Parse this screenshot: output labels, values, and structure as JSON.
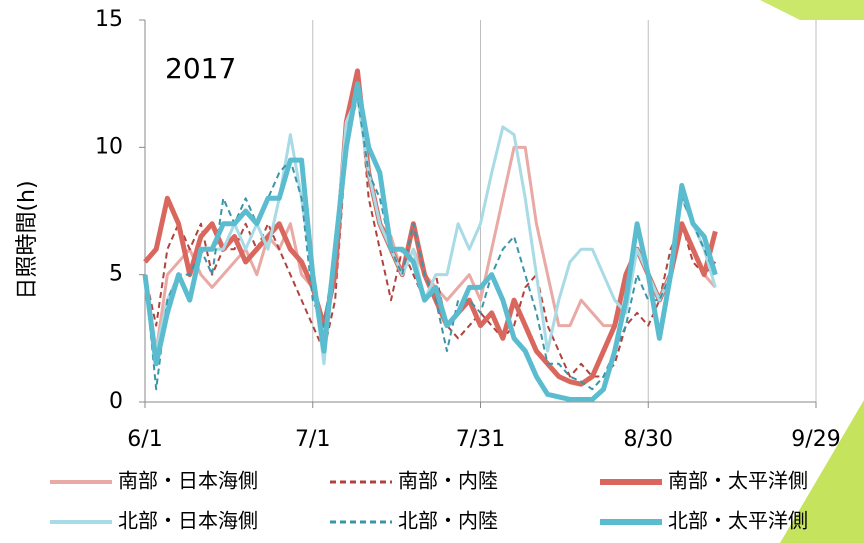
{
  "chart_data": {
    "type": "line",
    "annotation": "2017",
    "y_label": "日照時間(h)",
    "x": [
      0,
      2,
      4,
      6,
      8,
      10,
      12,
      14,
      16,
      18,
      20,
      22,
      24,
      26,
      28,
      30,
      32,
      34,
      36,
      38,
      40,
      42,
      44,
      46,
      48,
      50,
      52,
      54,
      56,
      58,
      60,
      62,
      64,
      66,
      68,
      70,
      72,
      74,
      76,
      78,
      80,
      82,
      84,
      86,
      88,
      90,
      92,
      94,
      96,
      98,
      100,
      102
    ],
    "xlim": [
      0,
      120
    ],
    "xticks": [
      {
        "value": 0,
        "label": "6/1"
      },
      {
        "value": 30,
        "label": "7/1"
      },
      {
        "value": 60,
        "label": "7/31"
      },
      {
        "value": 90,
        "label": "8/30"
      },
      {
        "value": 120,
        "label": "9/29"
      }
    ],
    "ylim": [
      0,
      15
    ],
    "yticks": [
      0,
      5,
      10,
      15
    ],
    "grid": "x",
    "series": [
      {
        "name": "南部・日本海側",
        "color": "#e9a9a4",
        "style": "solid",
        "values": [
          5,
          2,
          5,
          5.5,
          6,
          5,
          4.5,
          5,
          5.5,
          6,
          5,
          6.5,
          6,
          7,
          5,
          4.5,
          2.5,
          6,
          11,
          12.5,
          9,
          7,
          6.5,
          5,
          6,
          5,
          4.5,
          4,
          4.5,
          5,
          4,
          6,
          8,
          10,
          10,
          7,
          5,
          3,
          3,
          4,
          3.5,
          3,
          3,
          4,
          6,
          5,
          4,
          5,
          7,
          6,
          5,
          4.5
        ]
      },
      {
        "name": "南部・内陸",
        "color": "#b0423c",
        "style": "dashed",
        "values": [
          5,
          3,
          6,
          7,
          6,
          7,
          5,
          6,
          6,
          7,
          6,
          7,
          6,
          5,
          4,
          3,
          2,
          4,
          10,
          13,
          8,
          6,
          4,
          6,
          5,
          4,
          5,
          3,
          2.5,
          3,
          3.5,
          3,
          2.5,
          3,
          4.5,
          5,
          3,
          2,
          1,
          1.5,
          1,
          1,
          1.5,
          3,
          3.5,
          3,
          4,
          6,
          7,
          5.5,
          5,
          5.5
        ]
      },
      {
        "name": "南部・太平洋側",
        "color": "#d9675e",
        "style": "thick",
        "values": [
          5.5,
          6,
          8,
          7,
          5,
          6.5,
          7,
          6,
          6.5,
          5.5,
          6,
          6.5,
          7,
          6,
          5.5,
          4.5,
          3,
          5,
          11,
          13,
          9,
          7,
          6,
          5,
          7,
          5,
          4,
          3,
          3.5,
          4,
          3,
          3.5,
          2.5,
          4,
          3,
          2,
          1.5,
          1,
          0.8,
          0.7,
          1,
          2,
          3,
          5,
          6,
          5,
          4,
          5,
          7,
          6,
          5,
          6.7
        ]
      },
      {
        "name": "北部・日本海側",
        "color": "#a8dbe6",
        "style": "solid",
        "values": [
          5,
          2,
          4,
          5,
          4,
          6,
          6,
          6,
          7,
          6,
          7,
          6,
          8,
          10.5,
          8,
          5,
          1.5,
          6,
          11,
          12,
          9,
          7,
          6,
          5,
          6,
          4,
          5,
          5,
          7,
          6,
          7,
          9,
          10.8,
          10.5,
          8,
          5,
          2,
          4,
          5.5,
          6,
          6,
          5,
          4,
          3.5,
          6,
          5,
          4,
          5,
          8,
          7,
          6,
          4.5
        ]
      },
      {
        "name": "北部・内陸",
        "color": "#3a95a8",
        "style": "dashed",
        "values": [
          5,
          0.5,
          4,
          5,
          5,
          6,
          5,
          8,
          7,
          8,
          7,
          8,
          9,
          9.5,
          8,
          4,
          3,
          6,
          10,
          12,
          9,
          8,
          6,
          5,
          7,
          5,
          4,
          2,
          4,
          4,
          3.5,
          5,
          6,
          6.5,
          5,
          3.5,
          1.5,
          1.5,
          1,
          0.8,
          0.5,
          1,
          2,
          3,
          5,
          4,
          4,
          5,
          8,
          7,
          6,
          5
        ]
      },
      {
        "name": "北部・太平洋側",
        "color": "#5bbccf",
        "style": "thick",
        "values": [
          5,
          1.5,
          3.5,
          5,
          4,
          6,
          6,
          7,
          7,
          7.5,
          7,
          8,
          8,
          9.5,
          9.5,
          5,
          2,
          6,
          10,
          12.5,
          10,
          9,
          6,
          6,
          5.5,
          4,
          4.5,
          3,
          3.5,
          4.5,
          4.5,
          5,
          4,
          2.5,
          2,
          1,
          0.3,
          0.2,
          0.1,
          0.1,
          0.1,
          0.5,
          2,
          4,
          7,
          5,
          2.5,
          5,
          8.5,
          7,
          6.5,
          5
        ]
      }
    ]
  }
}
